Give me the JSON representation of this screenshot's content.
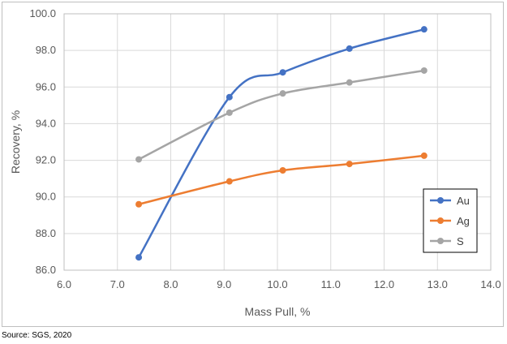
{
  "chart_data": {
    "type": "line",
    "xlabel": "Mass Pull, %",
    "ylabel": "Recovery, %",
    "xlim": [
      6.0,
      14.0
    ],
    "ylim": [
      86.0,
      100.0
    ],
    "x_ticks": [
      "6.0",
      "7.0",
      "8.0",
      "9.0",
      "10.0",
      "11.0",
      "12.0",
      "13.0",
      "14.0"
    ],
    "y_ticks": [
      "86.0",
      "88.0",
      "90.0",
      "92.0",
      "94.0",
      "96.0",
      "98.0",
      "100.0"
    ],
    "grid": "vertical and horizontal major gridlines",
    "legend_position": "bottom-right",
    "series": [
      {
        "name": "Au",
        "color": "#4472c4",
        "x": [
          7.4,
          9.1,
          10.1,
          11.35,
          12.75
        ],
        "y": [
          86.7,
          95.45,
          96.8,
          98.1,
          99.15
        ]
      },
      {
        "name": "Ag",
        "color": "#ed7d31",
        "x": [
          7.4,
          9.1,
          10.1,
          11.35,
          12.75
        ],
        "y": [
          89.6,
          90.85,
          91.45,
          91.8,
          92.25
        ]
      },
      {
        "name": "S",
        "color": "#a5a5a5",
        "x": [
          7.4,
          9.1,
          10.1,
          11.35,
          12.75
        ],
        "y": [
          92.05,
          94.6,
          95.65,
          96.25,
          96.9
        ]
      }
    ]
  },
  "source_note": "Source: SGS, 2020"
}
